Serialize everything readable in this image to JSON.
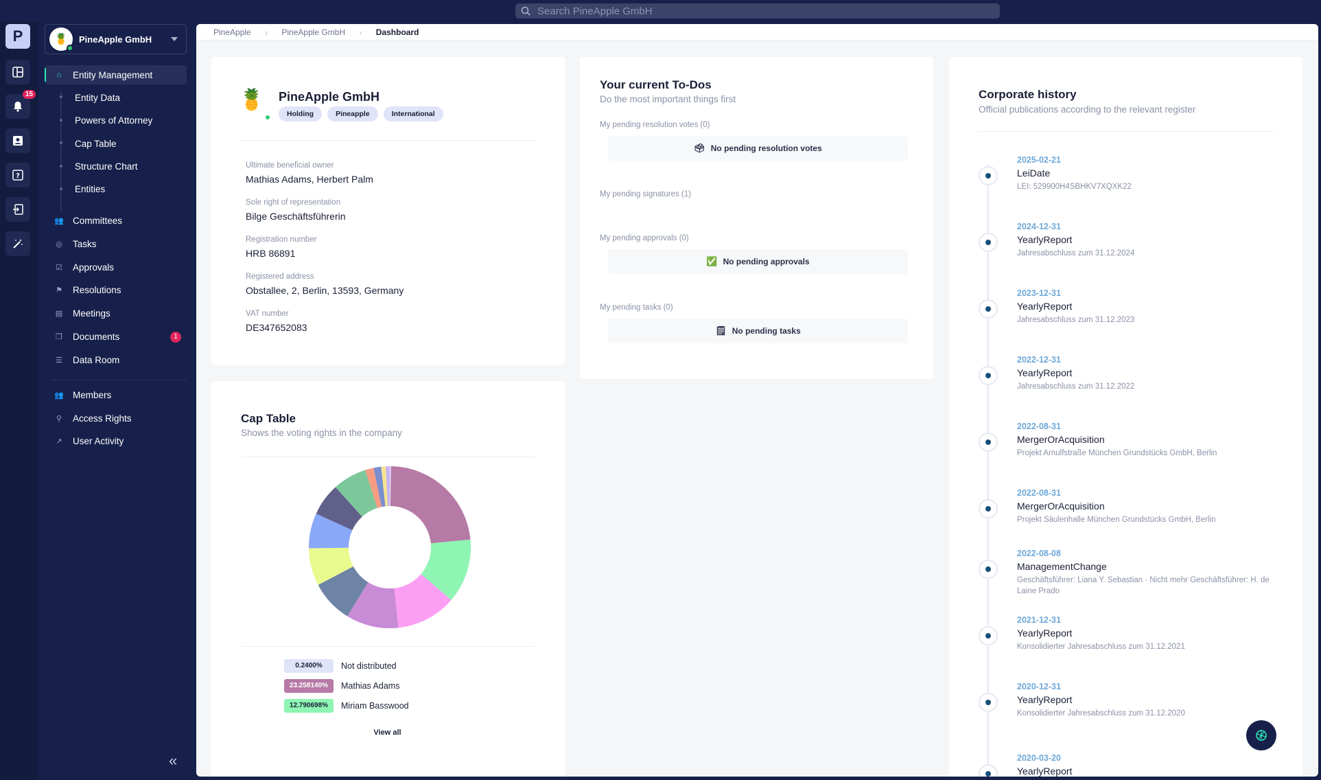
{
  "search": {
    "placeholder": "Search PineApple  GmbH"
  },
  "rail": {
    "logo": "P",
    "items": [
      {
        "icon": "dashboard-icon"
      },
      {
        "icon": "bell-icon",
        "badge": "15"
      },
      {
        "icon": "contact-card-icon"
      },
      {
        "icon": "help-icon"
      },
      {
        "icon": "login-icon"
      },
      {
        "icon": "magic-wand-icon"
      }
    ]
  },
  "org": {
    "name": "PineApple GmbH"
  },
  "nav": {
    "entity_management": "Entity Management",
    "sub_items": [
      "Entity Data",
      "Powers of Attorney",
      "Cap Table",
      "Structure Chart",
      "Entities"
    ],
    "group1": [
      {
        "label": "Committees",
        "icon": "users-icon"
      },
      {
        "label": "Tasks",
        "icon": "check-circle-icon"
      },
      {
        "label": "Approvals",
        "icon": "check-square-icon"
      },
      {
        "label": "Resolutions",
        "icon": "flag-icon"
      },
      {
        "label": "Meetings",
        "icon": "calendar-icon"
      },
      {
        "label": "Documents",
        "icon": "documents-icon",
        "badge": "1"
      },
      {
        "label": "Data Room",
        "icon": "database-icon"
      }
    ],
    "group2": [
      {
        "label": "Members",
        "icon": "members-icon"
      },
      {
        "label": "Access Rights",
        "icon": "access-icon"
      },
      {
        "label": "User Activity",
        "icon": "activity-icon"
      }
    ],
    "collapse": "«"
  },
  "breadcrumb": {
    "items": [
      "PineApple",
      "PineApple GmbH"
    ],
    "current": "Dashboard"
  },
  "entity": {
    "name": "PineApple GmbH",
    "tags": [
      "Holding",
      "Pineapple",
      "International"
    ],
    "fields": [
      {
        "label": "Ultimate beneficial owner",
        "value": "Mathias Adams, Herbert Palm"
      },
      {
        "label": "Sole right of representation",
        "value": "Bilge Geschäftsführerin"
      },
      {
        "label": "Registration number",
        "value": "HRB 86891"
      },
      {
        "label": "Registered address",
        "value": "Obstallee, 2, Berlin, 13593, Germany"
      },
      {
        "label": "VAT number",
        "value": "DE347652083"
      }
    ]
  },
  "todos": {
    "title": "Your current To-Dos",
    "subtitle": "Do the most important things first",
    "sections": [
      {
        "label": "My pending resolution votes (0)",
        "empty": "No pending resolution votes",
        "icon": "ballot-icon"
      },
      {
        "label": "My pending signatures (1)"
      },
      {
        "label": "My pending approvals (0)",
        "empty": "No pending approvals",
        "icon": "checkmark-icon"
      },
      {
        "label": "My pending tasks (0)",
        "empty": "No pending tasks",
        "icon": "notepad-icon"
      }
    ]
  },
  "cap_table": {
    "title": "Cap Table",
    "subtitle": "Shows the voting rights in the company",
    "legend": [
      {
        "value": "0.2400%",
        "name": "Not distributed",
        "color": "#dfe4f8",
        "text_color": "#1a1f36"
      },
      {
        "value": "23.258140%",
        "name": "Mathias Adams",
        "color": "#b67aa6",
        "text_color": "#ffffff"
      },
      {
        "value": "12.790698%",
        "name": "Miriam Basswood",
        "color": "#8ef5b2",
        "text_color": "#1a1f36"
      }
    ],
    "view_all": "View all"
  },
  "chart_data": {
    "type": "pie",
    "title": "",
    "series": [
      {
        "values": [
          0.24,
          23.26,
          12.79,
          12.0,
          10.5,
          8.5,
          7.5,
          7.0,
          6.5,
          6.8,
          1.7,
          1.5,
          0.9,
          0.8
        ]
      }
    ],
    "colors": [
      "#dfe4f8",
      "#b67aa6",
      "#8ef5b2",
      "#fb9ff5",
      "#c88bd6",
      "#6d84a6",
      "#e9fb8f",
      "#8aa8f8",
      "#60608a",
      "#7cc89a",
      "#f59c82",
      "#7a8ed0",
      "#f6e58d",
      "#c9b3f3"
    ]
  },
  "history": {
    "title": "Corporate history",
    "subtitle": "Official publications according to the relevant register",
    "items": [
      {
        "date": "2025-02-21",
        "type": "LeiDate",
        "desc": "LEI: 529900H4SBHKV7XQXK22"
      },
      {
        "date": "2024-12-31",
        "type": "YearlyReport",
        "desc": "Jahresabschluss zum 31.12.2024"
      },
      {
        "date": "2023-12-31",
        "type": "YearlyReport",
        "desc": "Jahresabschluss zum 31.12.2023"
      },
      {
        "date": "2022-12-31",
        "type": "YearlyReport",
        "desc": "Jahresabschluss zum 31.12.2022"
      },
      {
        "date": "2022-08-31",
        "type": "MergerOrAcquisition",
        "desc": "Projekt Arnulfstraße München Grundstücks GmbH, Berlin"
      },
      {
        "date": "2022-08-31",
        "type": "MergerOrAcquisition",
        "desc": "Projekt Säulenhalle München Grundstücks GmbH, Berlin"
      },
      {
        "date": "2022-08-08",
        "type": "ManagementChange",
        "desc": "Geschäftsführer: Liana Y. Sebastian · Nicht mehr Geschäftsführer: H. de Laine Prado"
      },
      {
        "date": "2021-12-31",
        "type": "YearlyReport",
        "desc": "Konsolidierter Jahresabschluss zum 31.12.2021"
      },
      {
        "date": "2020-12-31",
        "type": "YearlyReport",
        "desc": "Konsolidierter Jahresabschluss zum 31.12.2020"
      },
      {
        "date": "2020-03-20",
        "type": "YearlyReport",
        "desc": ""
      }
    ]
  }
}
